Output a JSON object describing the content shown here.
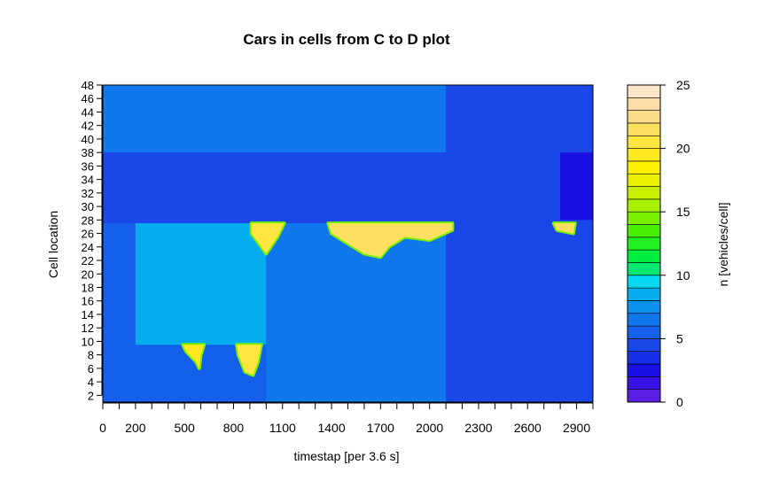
{
  "chart_data": {
    "type": "heatmap",
    "title": "Cars in cells from C to D plot",
    "xlabel": "timestap [per 3.6 s]",
    "ylabel": "Cell location",
    "colorbar_label": "n [vehicles/cell]",
    "x_range": [
      0,
      3000
    ],
    "y_range": [
      1,
      48
    ],
    "x_ticks": [
      0,
      200,
      500,
      800,
      1100,
      1400,
      1700,
      2000,
      2300,
      2600,
      2900
    ],
    "x_minor_ticks": [
      100,
      300,
      400,
      600,
      700,
      900,
      1000,
      1200,
      1300,
      1500,
      1600,
      1800,
      1900,
      2100,
      2200,
      2400,
      2500,
      2700,
      2800,
      3000
    ],
    "y_ticks": [
      2,
      4,
      6,
      8,
      10,
      12,
      14,
      16,
      18,
      20,
      22,
      24,
      26,
      28,
      30,
      32,
      34,
      36,
      38,
      40,
      42,
      44,
      46,
      48
    ],
    "colorbar_ticks": [
      0,
      5,
      10,
      15,
      20,
      25
    ],
    "colorbar_range": [
      0,
      25
    ],
    "colorbar_levels": [
      {
        "from": 0,
        "to": 1,
        "color": "#5a1ee6"
      },
      {
        "from": 1,
        "to": 2,
        "color": "#3a10e8"
      },
      {
        "from": 2,
        "to": 3,
        "color": "#1a10e6"
      },
      {
        "from": 3,
        "to": 4,
        "color": "#1530e6"
      },
      {
        "from": 4,
        "to": 5,
        "color": "#1a48e8"
      },
      {
        "from": 5,
        "to": 6,
        "color": "#1460ea"
      },
      {
        "from": 6,
        "to": 7,
        "color": "#1078ec"
      },
      {
        "from": 7,
        "to": 8,
        "color": "#0a92ee"
      },
      {
        "from": 8,
        "to": 9,
        "color": "#06aef0"
      },
      {
        "from": 9,
        "to": 10,
        "color": "#00d8f0"
      },
      {
        "from": 10,
        "to": 11,
        "color": "#00e870"
      },
      {
        "from": 11,
        "to": 12,
        "color": "#00ee40"
      },
      {
        "from": 12,
        "to": 13,
        "color": "#20f020"
      },
      {
        "from": 13,
        "to": 14,
        "color": "#48f000"
      },
      {
        "from": 14,
        "to": 15,
        "color": "#78f000"
      },
      {
        "from": 15,
        "to": 16,
        "color": "#a8f000"
      },
      {
        "from": 16,
        "to": 17,
        "color": "#c8f000"
      },
      {
        "from": 17,
        "to": 18,
        "color": "#e8f000"
      },
      {
        "from": 18,
        "to": 19,
        "color": "#fff000"
      },
      {
        "from": 19,
        "to": 20,
        "color": "#ffe820"
      },
      {
        "from": 20,
        "to": 21,
        "color": "#ffe640"
      },
      {
        "from": 21,
        "to": 22,
        "color": "#fde060"
      },
      {
        "from": 22,
        "to": 23,
        "color": "#fcdc88"
      },
      {
        "from": 23,
        "to": 24,
        "color": "#fcdca8"
      },
      {
        "from": 24,
        "to": 25,
        "color": "#fce4c8"
      }
    ],
    "regions": [
      {
        "name": "background",
        "x": [
          0,
          3000
        ],
        "y": [
          1,
          48
        ],
        "value": 5.5
      },
      {
        "name": "upper-section",
        "x": [
          0,
          3000
        ],
        "y": [
          38,
          48
        ],
        "value": 6.5
      },
      {
        "name": "middle-band",
        "x": [
          0,
          3000
        ],
        "y": [
          27.5,
          38
        ],
        "value": 4.5
      },
      {
        "name": "low-region-early",
        "x": [
          200,
          1000
        ],
        "y": [
          9.5,
          27.5
        ],
        "value": 8.5
      },
      {
        "name": "low-region-mid",
        "x": [
          1000,
          2100
        ],
        "y": [
          1,
          27.5
        ],
        "value": 6.5
      },
      {
        "name": "late-region",
        "x": [
          2100,
          3000
        ],
        "y": [
          1,
          48
        ],
        "value": 4.5
      },
      {
        "name": "dark-right-strip",
        "x": [
          2800,
          3000
        ],
        "y": [
          28,
          38
        ],
        "value": 2.5
      }
    ],
    "hotspots": [
      {
        "name": "jam-1",
        "points": [
          [
            910,
            27.5
          ],
          [
            1110,
            27.5
          ],
          [
            1070,
            25.5
          ],
          [
            1000,
            23
          ],
          [
            970,
            24
          ],
          [
            910,
            26
          ]
        ],
        "value": 20
      },
      {
        "name": "jam-2",
        "points": [
          [
            1380,
            27.5
          ],
          [
            2140,
            27.5
          ],
          [
            2140,
            26.5
          ],
          [
            2000,
            25
          ],
          [
            1850,
            25.5
          ],
          [
            1750,
            24
          ],
          [
            1700,
            22.5
          ],
          [
            1600,
            23
          ],
          [
            1500,
            24.5
          ],
          [
            1400,
            26
          ]
        ],
        "value": 21
      },
      {
        "name": "jam-3",
        "points": [
          [
            2760,
            27.5
          ],
          [
            2890,
            27.5
          ],
          [
            2880,
            26
          ],
          [
            2780,
            26.5
          ]
        ],
        "value": 21
      },
      {
        "name": "jam-4",
        "points": [
          [
            820,
            9.5
          ],
          [
            970,
            9.5
          ],
          [
            950,
            7
          ],
          [
            920,
            5
          ],
          [
            870,
            5.5
          ],
          [
            830,
            8
          ]
        ],
        "value": 20
      },
      {
        "name": "jam-5",
        "points": [
          [
            490,
            9.5
          ],
          [
            620,
            9.5
          ],
          [
            600,
            8
          ],
          [
            590,
            6
          ],
          [
            570,
            7
          ],
          [
            510,
            8.5
          ]
        ],
        "value": 19
      }
    ]
  }
}
